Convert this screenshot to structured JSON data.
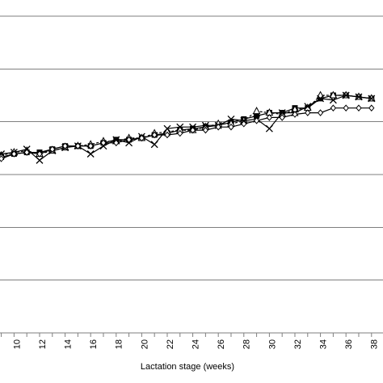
{
  "chart_data": {
    "type": "line",
    "xlabel": "Lactation stage (weeks)",
    "x_ticks": [
      "10",
      "12",
      "14",
      "16",
      "18",
      "20",
      "22",
      "24",
      "26",
      "28",
      "30",
      "32",
      "34",
      "36",
      "38"
    ],
    "xlim": [
      8.9,
      38.9
    ],
    "ylim": [
      0,
      100
    ],
    "gridlines_y": [
      16.7,
      33.3,
      50,
      66.7,
      83.3,
      100
    ],
    "grid": true,
    "legend": "none",
    "x": [
      9,
      10,
      11,
      12,
      13,
      14,
      15,
      16,
      17,
      18,
      19,
      20,
      21,
      22,
      23,
      24,
      25,
      26,
      27,
      28,
      29,
      30,
      31,
      32,
      33,
      34,
      35,
      36,
      37,
      38
    ],
    "series": [
      {
        "marker": "square",
        "values": [
          55.5,
          56.5,
          57.0,
          57.0,
          58.0,
          59.0,
          59.0,
          59.0,
          60.0,
          61.0,
          61.0,
          61.5,
          62.5,
          63.0,
          64.0,
          64.5,
          65.0,
          65.5,
          66.5,
          67.5,
          68.5,
          69.5,
          69.5,
          71.0,
          71.0,
          74.0,
          75.0,
          75.0,
          74.5,
          74.0
        ]
      },
      {
        "marker": "triangle",
        "values": [
          56.0,
          57.0,
          57.5,
          56.5,
          57.5,
          58.5,
          59.0,
          59.5,
          60.5,
          60.5,
          61.5,
          61.5,
          63.0,
          63.5,
          64.0,
          64.0,
          65.0,
          66.0,
          66.0,
          67.0,
          70.0,
          69.5,
          69.0,
          70.5,
          71.0,
          75.0,
          75.0,
          75.0,
          74.5,
          74.0
        ]
      },
      {
        "marker": "x",
        "values": [
          56.5,
          57.0,
          58.0,
          54.5,
          57.5,
          58.5,
          59.0,
          56.5,
          59.0,
          61.0,
          60.0,
          62.0,
          59.5,
          64.5,
          65.0,
          65.0,
          65.5,
          65.5,
          67.5,
          67.0,
          67.5,
          64.5,
          69.5,
          69.5,
          71.5,
          74.0,
          73.5,
          75.0,
          74.5,
          74.0
        ]
      },
      {
        "marker": "diamond",
        "values": [
          55.0,
          56.5,
          57.0,
          56.5,
          58.0,
          59.0,
          59.0,
          59.0,
          60.0,
          60.0,
          61.0,
          61.5,
          62.5,
          62.5,
          63.0,
          64.0,
          64.0,
          65.0,
          65.0,
          66.0,
          67.0,
          68.0,
          68.0,
          69.0,
          69.5,
          69.5,
          71.0,
          71.0,
          71.0,
          71.0
        ]
      }
    ]
  }
}
